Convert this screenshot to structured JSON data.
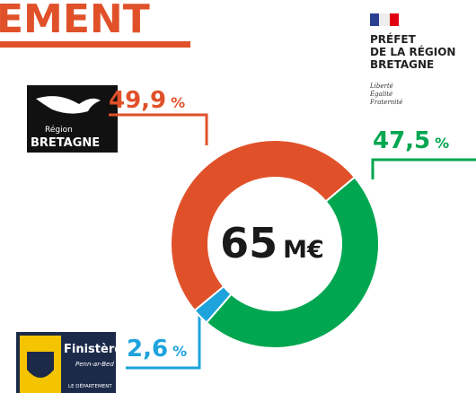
{
  "chart_data": {
    "type": "donut",
    "title": "EMENT",
    "center_value": "65",
    "center_unit": "M€",
    "categories": [
      "PRÉFET DE LA RÉGION BRETAGNE",
      "Finistère",
      "Région BRETAGNE"
    ],
    "values": [
      47.5,
      2.6,
      49.9
    ],
    "value_labels": [
      "47,5",
      "2,6",
      "49,9"
    ],
    "value_unit": "%",
    "colors": [
      "#00a650",
      "#1ea3dc",
      "#e0512a"
    ],
    "logos": {
      "region": {
        "line1": "Région",
        "line2": "BRETAGNE"
      },
      "prefet": {
        "line1": "PRÉFET",
        "line2": "DE LA RÉGION",
        "line3": "BRETAGNE",
        "motto": [
          "Liberté",
          "Égalité",
          "Fraternité"
        ]
      },
      "finistere": {
        "name": "Finistère",
        "sub": "Penn-ar-Bed",
        "dept": "LE DÉPARTEMENT"
      }
    }
  }
}
